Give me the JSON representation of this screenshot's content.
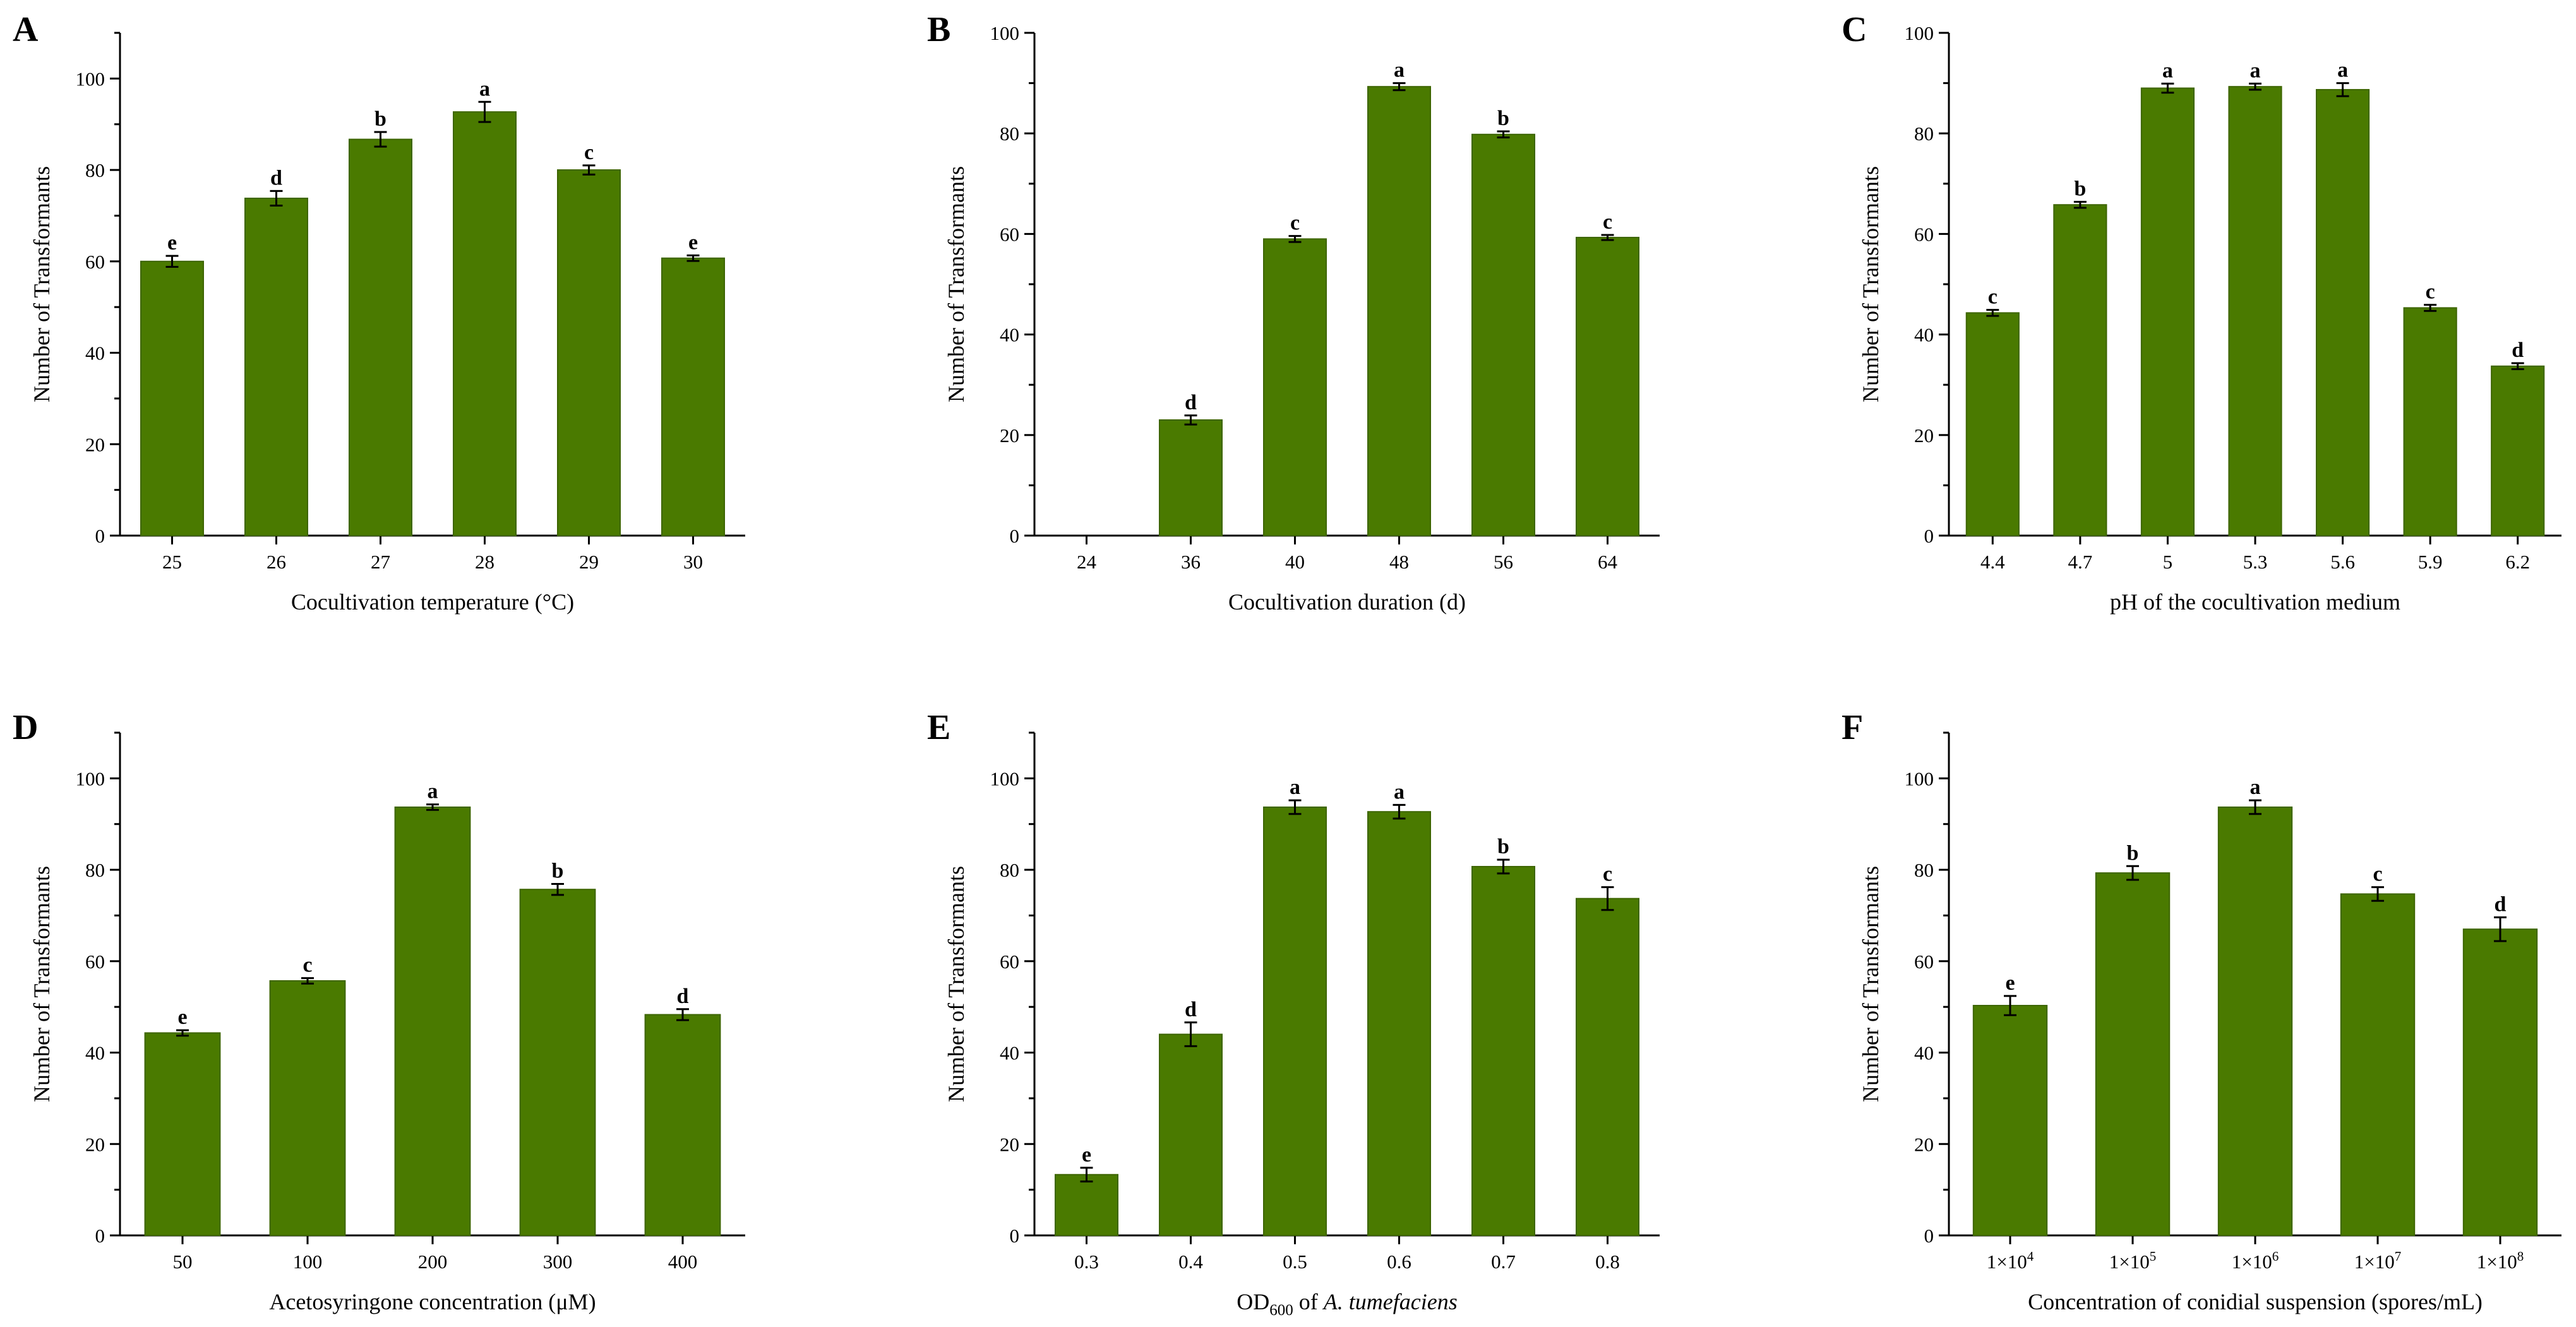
{
  "colors": {
    "bar": "#4a7a00",
    "bar_edge": "#3d6500",
    "axis": "#000000"
  },
  "chart_data": [
    {
      "type": "bar",
      "panel": "A",
      "categories": [
        "25",
        "26",
        "27",
        "28",
        "29",
        "30"
      ],
      "values": [
        60,
        73.8,
        86.7,
        92.7,
        80,
        60.7
      ],
      "errors": [
        1.2,
        1.6,
        1.6,
        2.2,
        1.0,
        0.6
      ],
      "letters": [
        "e",
        "d",
        "b",
        "a",
        "c",
        "e"
      ],
      "xlabel": "Cocultivation temperature (°C)",
      "xlabel_html": "",
      "ylabel": "Number of Transformants",
      "ylim": [
        0,
        110
      ],
      "yticks": [
        "0",
        "20",
        "40",
        "60",
        "80",
        "100"
      ]
    },
    {
      "type": "bar",
      "panel": "B",
      "categories": [
        "24",
        "36",
        "40",
        "48",
        "56",
        "64"
      ],
      "values": [
        0,
        23,
        59,
        89.3,
        79.8,
        59.3
      ],
      "errors": [
        0,
        0.9,
        0.6,
        0.7,
        0.6,
        0.5
      ],
      "letters": [
        "",
        "d",
        "c",
        "a",
        "b",
        "c"
      ],
      "xlabel": "Cocultivation duration (d)",
      "ylabel": "Number of Transformants",
      "ylim": [
        0,
        100
      ],
      "yticks": [
        "0",
        "20",
        "40",
        "60",
        "80",
        "100"
      ]
    },
    {
      "type": "bar",
      "panel": "C",
      "categories": [
        "4.4",
        "4.7",
        "5",
        "5.3",
        "5.6",
        "5.9",
        "6.2"
      ],
      "values": [
        44.3,
        65.8,
        89,
        89.3,
        88.7,
        45.3,
        33.7
      ],
      "errors": [
        0.6,
        0.6,
        0.9,
        0.6,
        1.3,
        0.6,
        0.6
      ],
      "letters": [
        "c",
        "b",
        "a",
        "a",
        "a",
        "c",
        "d"
      ],
      "xlabel": "pH of the cocultivation medium",
      "ylabel": "Number of Transformants",
      "ylim": [
        0,
        100
      ],
      "yticks": [
        "0",
        "20",
        "40",
        "60",
        "80",
        "100"
      ]
    },
    {
      "type": "bar",
      "panel": "D",
      "categories": [
        "50",
        "100",
        "200",
        "300",
        "400"
      ],
      "values": [
        44.3,
        55.7,
        93.7,
        75.7,
        48.3
      ],
      "errors": [
        0.6,
        0.6,
        0.6,
        1.2,
        1.2
      ],
      "letters": [
        "e",
        "c",
        "a",
        "b",
        "d"
      ],
      "xlabel": "Acetosyringone concentration (μM)",
      "ylabel": "Number of Transformants",
      "ylim": [
        0,
        110
      ],
      "yticks": [
        "0",
        "20",
        "40",
        "60",
        "80",
        "100"
      ]
    },
    {
      "type": "bar",
      "panel": "E",
      "categories": [
        "0.3",
        "0.4",
        "0.5",
        "0.6",
        "0.7",
        "0.8"
      ],
      "values": [
        13.3,
        44,
        93.7,
        92.7,
        80.7,
        73.7
      ],
      "errors": [
        1.5,
        2.6,
        1.5,
        1.5,
        1.5,
        2.5
      ],
      "letters": [
        "e",
        "d",
        "a",
        "a",
        "b",
        "c"
      ],
      "xlabel_parts": {
        "pre": "OD",
        "sub": "600",
        "mid": " of ",
        "italic": "A. tumefaciens"
      },
      "ylabel": "Number of Transformants",
      "ylim": [
        0,
        110
      ],
      "yticks": [
        "0",
        "20",
        "40",
        "60",
        "80",
        "100"
      ]
    },
    {
      "type": "bar",
      "panel": "F",
      "categories": [
        {
          "base": "1×10",
          "exp": "4"
        },
        {
          "base": "1×10",
          "exp": "5"
        },
        {
          "base": "1×10",
          "exp": "6"
        },
        {
          "base": "1×10",
          "exp": "7"
        },
        {
          "base": "1×10",
          "exp": "8"
        }
      ],
      "values": [
        50.3,
        79.3,
        93.7,
        74.7,
        67
      ],
      "errors": [
        2.1,
        1.5,
        1.5,
        1.5,
        2.6
      ],
      "letters": [
        "e",
        "b",
        "a",
        "c",
        "d"
      ],
      "xlabel": "Concentration of conidial suspension (spores/mL)",
      "ylabel": "Number of Transformants",
      "ylim": [
        0,
        110
      ],
      "yticks": [
        "0",
        "20",
        "40",
        "60",
        "80",
        "100"
      ]
    }
  ]
}
